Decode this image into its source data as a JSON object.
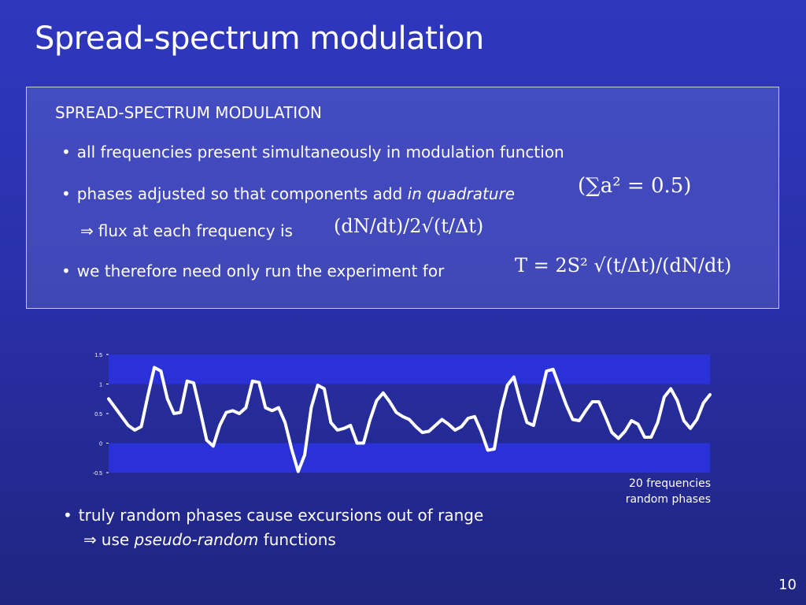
{
  "slide": {
    "title": "Spread-spectrum modulation",
    "page_number": "10"
  },
  "panel": {
    "heading": "SPREAD-SPECTRUM MODULATION",
    "bullet1": "all frequencies present simultaneously in modulation function",
    "bullet2_prefix": "phases adjusted so that components add ",
    "bullet2_italic": "in quadrature",
    "bullet2_math": "(∑a² = 0.5)",
    "bullet3_prefix": "flux at each frequency is",
    "bullet3_math": "(dN/dt)/2√(t/Δt)",
    "bullet4_prefix": "we therefore need only run the experiment for",
    "bullet4_math": "T = 2S² √(t/Δt)/(dN/dt)"
  },
  "chart_caption": {
    "line1": "20 frequencies",
    "line2": "random phases"
  },
  "bottom": {
    "bullet1": "truly random phases cause excursions out of range",
    "bullet2_prefix": "use ",
    "bullet2_italic": "pseudo-random",
    "bullet2_suffix": " functions"
  },
  "colors": {
    "band": "#2a31d6",
    "line": "#ffffff",
    "axis_text": "#ffffff"
  },
  "chart_data": {
    "type": "line",
    "title": "",
    "xlabel": "",
    "ylabel": "",
    "ylim": [
      -0.5,
      1.5
    ],
    "yticks": [
      "1.5",
      "1",
      "0.5",
      "0",
      "-0.5"
    ],
    "bands": [
      [
        1.0,
        1.5
      ],
      [
        -0.5,
        0.0
      ]
    ],
    "series": [
      {
        "values": [
          0.75,
          0.6,
          0.45,
          0.3,
          0.22,
          0.28,
          0.8,
          1.28,
          1.22,
          0.75,
          0.5,
          0.52,
          1.05,
          1.02,
          0.55,
          0.05,
          -0.05,
          0.3,
          0.52,
          0.55,
          0.5,
          0.6,
          1.05,
          1.03,
          0.6,
          0.55,
          0.6,
          0.35,
          -0.1,
          -0.48,
          -0.2,
          0.6,
          0.98,
          0.92,
          0.35,
          0.22,
          0.25,
          0.3,
          0.0,
          0.0,
          0.4,
          0.72,
          0.85,
          0.7,
          0.52,
          0.45,
          0.4,
          0.28,
          0.18,
          0.2,
          0.3,
          0.4,
          0.32,
          0.22,
          0.28,
          0.42,
          0.45,
          0.2,
          -0.12,
          -0.1,
          0.55,
          0.98,
          1.12,
          0.7,
          0.35,
          0.3,
          0.75,
          1.22,
          1.25,
          0.95,
          0.65,
          0.4,
          0.38,
          0.55,
          0.7,
          0.7,
          0.45,
          0.18,
          0.08,
          0.2,
          0.38,
          0.32,
          0.1,
          0.1,
          0.35,
          0.78,
          0.92,
          0.72,
          0.38,
          0.25,
          0.4,
          0.68,
          0.82
        ]
      }
    ]
  }
}
